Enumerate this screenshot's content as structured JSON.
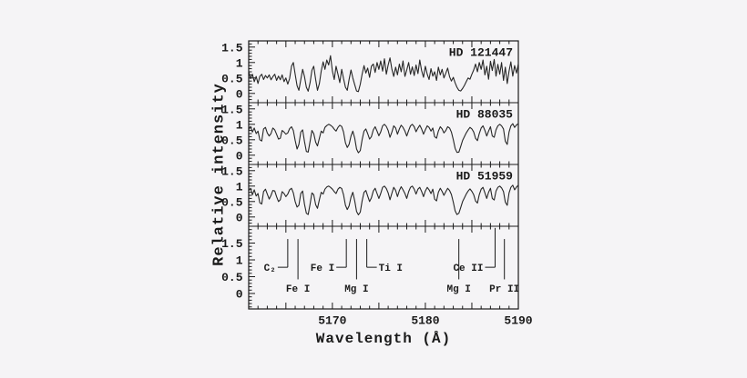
{
  "colors": {
    "background": "#f5f4f6",
    "ink": "#1a1a1a",
    "spectrum_line": "#262626"
  },
  "chart_data": {
    "type": "line",
    "title": "",
    "xlabel": "Wavelength (Å)",
    "ylabel": "Relative intensity",
    "x_range": [
      5161,
      5190
    ],
    "x_ticks_labeled": [
      "5170",
      "5180",
      "5190"
    ],
    "x_minor_step": 1,
    "x_medium_step": 5,
    "panel_y_range": [
      -0.3,
      1.7
    ],
    "y_ticks_labeled": [
      "0",
      "0.5",
      "1",
      "1.5"
    ],
    "y_minor_step": 0.1,
    "grid": "off",
    "legend": "none",
    "wavelength_start": 5161.0,
    "wavelength_step": 0.2,
    "series": [
      {
        "name": "HD 121447",
        "values": [
          0.72,
          0.48,
          0.62,
          0.38,
          0.55,
          0.32,
          0.55,
          0.62,
          0.45,
          0.58,
          0.5,
          0.6,
          0.44,
          0.54,
          0.62,
          0.42,
          0.56,
          0.44,
          0.6,
          0.38,
          0.5,
          0.3,
          0.48,
          0.88,
          1.0,
          0.62,
          0.25,
          0.1,
          0.45,
          0.78,
          0.55,
          0.2,
          0.07,
          0.35,
          0.75,
          0.88,
          0.45,
          0.1,
          0.32,
          0.72,
          1.02,
          0.78,
          1.08,
          0.92,
          1.22,
          0.72,
          0.45,
          0.88,
          0.62,
          0.35,
          0.78,
          0.48,
          0.2,
          0.1,
          0.45,
          0.76,
          0.5,
          0.28,
          0.08,
          0.06,
          0.3,
          0.62,
          0.9,
          0.66,
          0.82,
          0.52,
          0.88,
          0.95,
          0.68,
          1.0,
          0.78,
          1.05,
          0.72,
          1.12,
          0.62,
          0.92,
          1.15,
          0.78,
          0.55,
          0.85,
          0.6,
          0.95,
          0.7,
          1.05,
          0.55,
          0.76,
          1.0,
          0.62,
          0.86,
          0.58,
          0.92,
          0.64,
          1.08,
          0.74,
          0.52,
          0.88,
          0.62,
          0.45,
          0.8,
          0.56,
          0.7,
          0.42,
          0.85,
          0.6,
          0.78,
          0.5,
          0.66,
          0.82,
          0.54,
          0.4,
          0.52,
          0.34,
          0.2,
          0.1,
          0.08,
          0.16,
          0.26,
          0.38,
          0.5,
          0.46,
          0.62,
          0.76,
          0.95,
          0.7,
          1.0,
          0.78,
          1.08,
          0.6,
          0.88,
          0.46,
          1.04,
          0.74,
          1.1,
          0.56,
          0.94,
          0.62,
          1.0,
          0.42,
          0.85,
          0.32,
          0.72,
          1.02,
          0.56,
          0.9,
          0.66,
          0.96
        ]
      },
      {
        "name": "HD 88035",
        "values": [
          0.82,
          0.93,
          0.75,
          0.88,
          0.7,
          0.78,
          0.5,
          0.46,
          0.85,
          0.9,
          0.72,
          0.62,
          0.7,
          0.88,
          0.82,
          0.68,
          0.52,
          0.55,
          0.8,
          0.75,
          0.68,
          0.72,
          0.86,
          0.92,
          0.8,
          0.48,
          0.2,
          0.35,
          0.75,
          0.82,
          0.45,
          0.12,
          0.1,
          0.45,
          0.8,
          0.7,
          0.42,
          0.3,
          0.55,
          0.78,
          0.72,
          0.9,
          0.96,
          1.0,
          0.97,
          0.92,
          0.84,
          0.78,
          0.9,
          0.97,
          0.93,
          0.75,
          0.4,
          0.25,
          0.35,
          0.62,
          0.78,
          0.55,
          0.2,
          0.08,
          0.15,
          0.5,
          0.78,
          0.85,
          0.7,
          0.52,
          0.6,
          0.82,
          0.92,
          0.78,
          0.63,
          0.75,
          0.95,
          1.0,
          0.93,
          0.8,
          0.58,
          0.75,
          0.95,
          0.88,
          0.68,
          0.85,
          0.97,
          0.9,
          0.78,
          0.62,
          0.8,
          0.95,
          1.0,
          0.92,
          0.76,
          0.88,
          0.97,
          0.85,
          0.68,
          0.82,
          0.95,
          0.9,
          0.78,
          0.88,
          0.6,
          0.55,
          0.78,
          0.92,
          0.85,
          0.72,
          0.8,
          0.92,
          0.88,
          0.75,
          0.5,
          0.22,
          0.09,
          0.1,
          0.28,
          0.48,
          0.6,
          0.72,
          0.82,
          0.9,
          0.85,
          0.75,
          0.55,
          0.47,
          0.7,
          0.88,
          0.95,
          0.8,
          0.62,
          0.78,
          0.92,
          0.62,
          0.58,
          0.82,
          0.95,
          1.0,
          0.95,
          0.85,
          0.45,
          0.35,
          0.75,
          0.95,
          1.02,
          0.9,
          0.98,
          1.02
        ]
      },
      {
        "name": "HD 51959",
        "values": [
          0.85,
          0.93,
          0.72,
          0.88,
          0.68,
          0.76,
          0.46,
          0.42,
          0.82,
          0.9,
          0.74,
          0.58,
          0.7,
          0.86,
          0.84,
          0.66,
          0.5,
          0.56,
          0.82,
          0.76,
          0.66,
          0.74,
          0.88,
          0.93,
          0.78,
          0.5,
          0.32,
          0.38,
          0.76,
          0.84,
          0.42,
          0.12,
          0.08,
          0.42,
          0.78,
          0.72,
          0.4,
          0.28,
          0.56,
          0.8,
          0.74,
          0.9,
          0.97,
          1.0,
          0.96,
          0.9,
          0.82,
          0.76,
          0.9,
          0.96,
          0.92,
          0.72,
          0.38,
          0.24,
          0.36,
          0.64,
          0.8,
          0.52,
          0.18,
          0.07,
          0.16,
          0.52,
          0.8,
          0.86,
          0.68,
          0.5,
          0.62,
          0.84,
          0.93,
          0.76,
          0.6,
          0.76,
          0.96,
          1.0,
          0.92,
          0.78,
          0.56,
          0.77,
          0.96,
          0.86,
          0.66,
          0.86,
          0.98,
          0.88,
          0.76,
          0.6,
          0.82,
          0.96,
          1.0,
          0.9,
          0.74,
          0.9,
          0.96,
          0.83,
          0.66,
          0.84,
          0.96,
          0.88,
          0.76,
          0.9,
          0.58,
          0.52,
          0.8,
          0.93,
          0.83,
          0.7,
          0.82,
          0.93,
          0.86,
          0.73,
          0.48,
          0.2,
          0.08,
          0.12,
          0.3,
          0.5,
          0.62,
          0.74,
          0.84,
          0.91,
          0.83,
          0.72,
          0.52,
          0.45,
          0.72,
          0.9,
          0.96,
          0.78,
          0.6,
          0.8,
          0.93,
          0.6,
          0.55,
          0.84,
          0.96,
          1.0,
          0.94,
          0.82,
          0.48,
          0.38,
          0.78,
          0.96,
          1.03,
          0.88,
          0.97,
          1.03
        ]
      }
    ],
    "line_ids": {
      "y_range": [
        -0.46,
        2.0
      ],
      "markers": [
        {
          "label": "C₂",
          "wavelength": 5165.2,
          "style": "bracket",
          "side": "left"
        },
        {
          "label": "Fe I",
          "wavelength": 5166.3,
          "style": "tick",
          "side": "below"
        },
        {
          "label": "Fe I",
          "wavelength": 5171.5,
          "style": "bracket",
          "side": "left"
        },
        {
          "label": "Mg I",
          "wavelength": 5172.6,
          "style": "tick",
          "side": "below"
        },
        {
          "label": "Ti I",
          "wavelength": 5173.7,
          "style": "bracket",
          "side": "right"
        },
        {
          "label": "Mg I",
          "wavelength": 5183.6,
          "style": "tick",
          "side": "below"
        },
        {
          "label": "Ce II",
          "wavelength": 5187.5,
          "style": "bracket",
          "side": "left",
          "top": 1.95
        },
        {
          "label": "Pr II",
          "wavelength": 5188.5,
          "style": "tick",
          "side": "below"
        }
      ]
    }
  }
}
